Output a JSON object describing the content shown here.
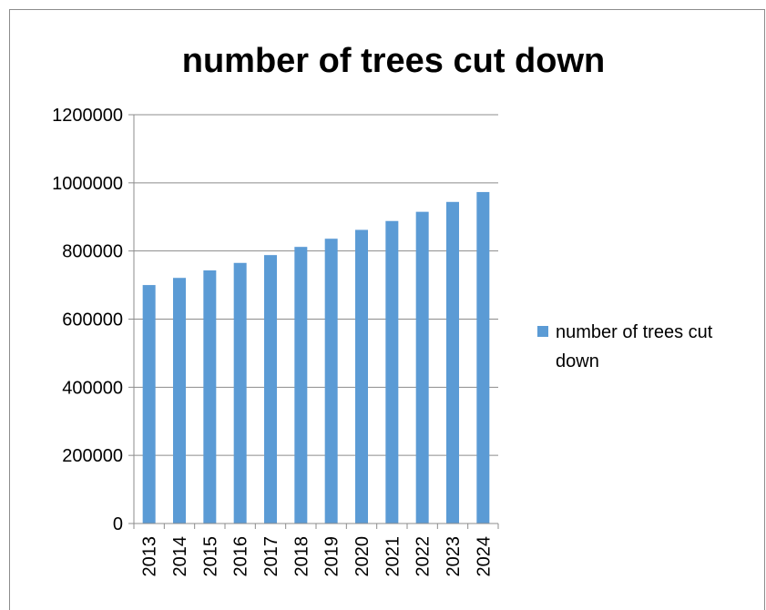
{
  "chart_data": {
    "type": "bar",
    "title": "number of trees cut down",
    "xlabel": "",
    "ylabel": "",
    "categories": [
      "2013",
      "2014",
      "2015",
      "2016",
      "2017",
      "2018",
      "2019",
      "2020",
      "2021",
      "2022",
      "2023",
      "2024"
    ],
    "series": [
      {
        "name": "number of trees cut down",
        "values": [
          700000,
          721000,
          743000,
          765000,
          788000,
          812000,
          836000,
          862000,
          888000,
          915000,
          944000,
          973000
        ],
        "color": "#5b9bd5"
      }
    ],
    "ylim": [
      0,
      1200000
    ],
    "yticks": [
      "0",
      "200000",
      "400000",
      "600000",
      "800000",
      "1000000",
      "1200000"
    ],
    "grid": true,
    "legend_position": "right"
  }
}
